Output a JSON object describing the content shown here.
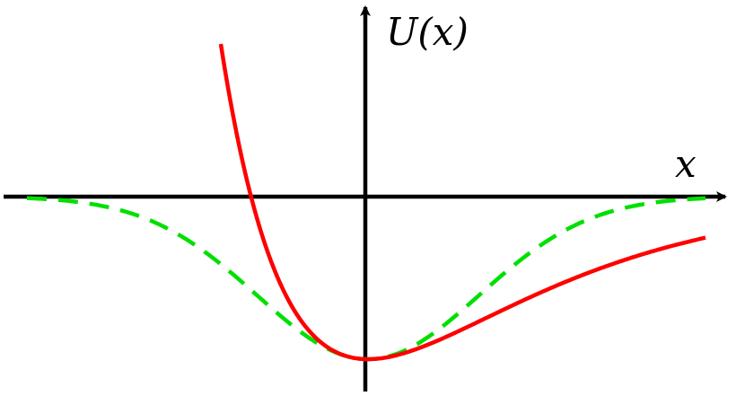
{
  "diagram": {
    "axes": {
      "x_label": "x",
      "y_label": "U(x)"
    },
    "curves": [
      {
        "style": "solid",
        "color": "#ff0000"
      },
      {
        "style": "dashed",
        "color": "#00e000"
      }
    ],
    "axis_color": "#000000"
  }
}
